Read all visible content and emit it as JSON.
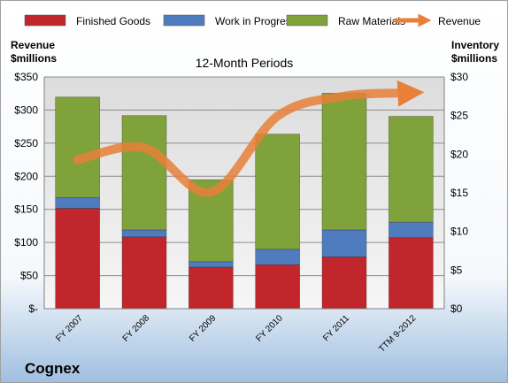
{
  "company": "Cognex",
  "chart_data": {
    "type": "bar",
    "stacked": true,
    "title": "12-Month Periods",
    "left_axis": {
      "label_line1": "Revenue",
      "label_line2": "$millions",
      "ylim": [
        0,
        350
      ],
      "ticks": [
        "$-",
        "$50",
        "$100",
        "$150",
        "$200",
        "$250",
        "$300",
        "$350"
      ]
    },
    "right_axis": {
      "label_line1": "Inventory",
      "label_line2": "$millions",
      "ylim": [
        0,
        30
      ],
      "ticks": [
        "$0",
        "$5",
        "$10",
        "$15",
        "$20",
        "$25",
        "$30"
      ]
    },
    "categories": [
      "FY 2007",
      "FY 2008",
      "FY 2009",
      "FY 2010",
      "FY 2011",
      "TTM 9-2012"
    ],
    "series": [
      {
        "name": "Finished Goods",
        "axis": "right",
        "color": "#c0262b",
        "values": [
          13.0,
          9.3,
          5.4,
          5.7,
          6.7,
          9.2
        ]
      },
      {
        "name": "Work in Progress",
        "axis": "right",
        "color": "#4f7bbf",
        "values": [
          1.4,
          0.9,
          0.7,
          2.0,
          3.5,
          2.0
        ]
      },
      {
        "name": "Raw Materials",
        "axis": "right",
        "color": "#80a23a",
        "values": [
          13.0,
          14.8,
          10.6,
          14.9,
          17.7,
          13.7
        ]
      },
      {
        "name": "Revenue",
        "axis": "left",
        "type": "line",
        "color": "#e8803a",
        "values": [
          225,
          243,
          176,
          291,
          321,
          326
        ]
      }
    ],
    "legend_position": "top",
    "grid": true
  }
}
